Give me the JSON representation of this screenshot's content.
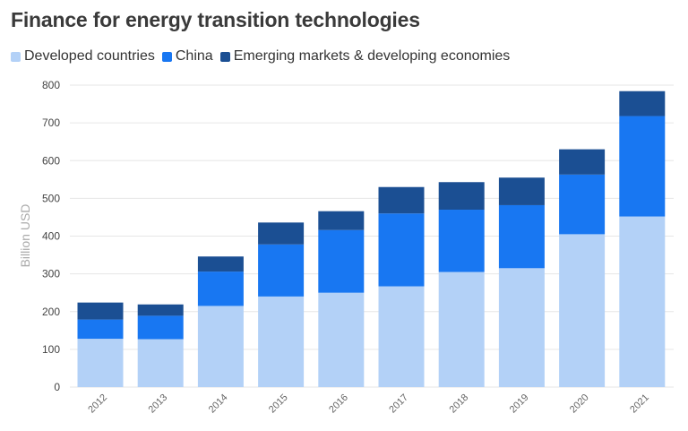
{
  "chart_data": {
    "type": "bar",
    "stacked": true,
    "title": "Finance for energy transition technologies",
    "ylabel": "Billion USD",
    "xlabel": "",
    "ylim": [
      0,
      800
    ],
    "yticks": [
      0,
      100,
      200,
      300,
      400,
      500,
      600,
      700,
      800
    ],
    "grid": true,
    "legend_position": "top-left",
    "categories": [
      "2012",
      "2013",
      "2014",
      "2015",
      "2016",
      "2017",
      "2018",
      "2019",
      "2020",
      "2021"
    ],
    "series": [
      {
        "name": "Developed countries",
        "color": "#b3d1f7",
        "values": [
          128,
          127,
          215,
          240,
          250,
          267,
          305,
          315,
          405,
          452
        ]
      },
      {
        "name": "China",
        "color": "#1877f2",
        "values": [
          51,
          62,
          91,
          138,
          166,
          193,
          165,
          167,
          158,
          266
        ]
      },
      {
        "name": "Emerging markets & developing economies",
        "color": "#1b4f93",
        "values": [
          45,
          30,
          40,
          58,
          50,
          70,
          73,
          73,
          67,
          66
        ]
      }
    ]
  }
}
